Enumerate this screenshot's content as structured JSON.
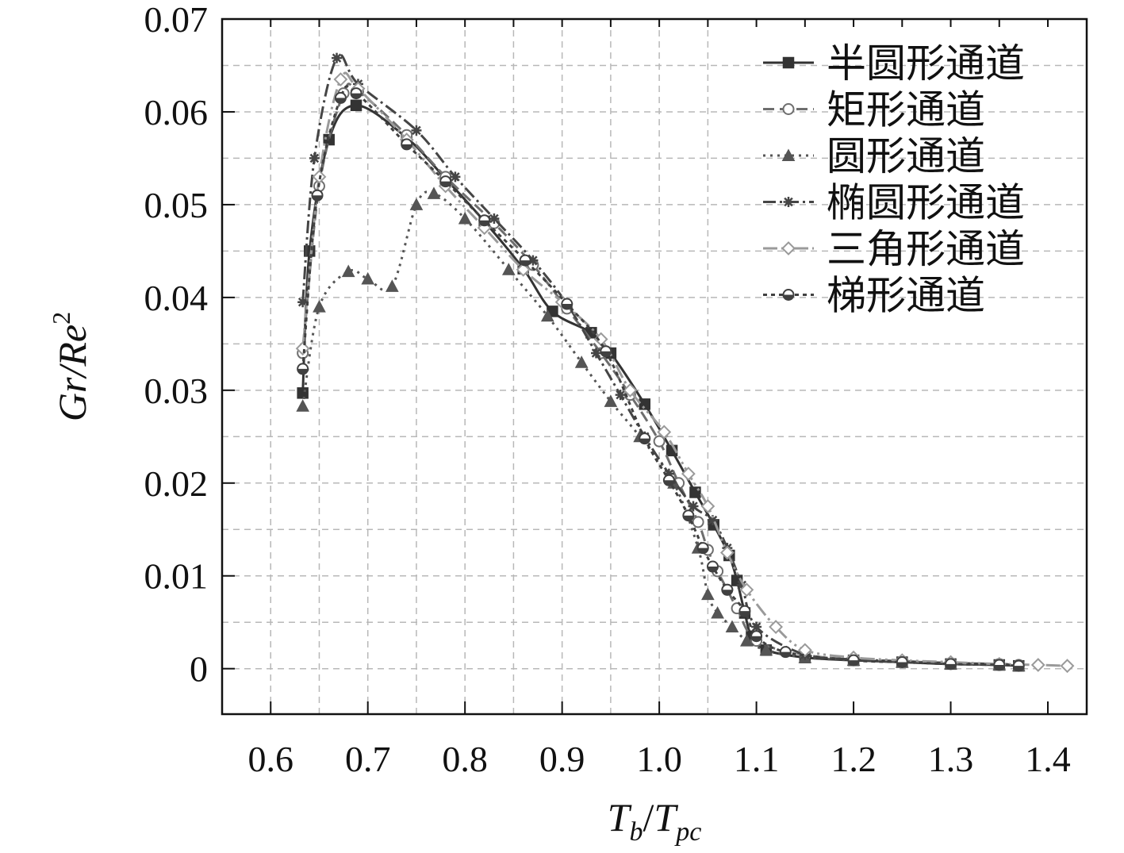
{
  "chart_data": {
    "type": "line",
    "xlabel": {
      "main": "T",
      "sub1": "b",
      "sep": "/",
      "main2": "T",
      "sub2": "pc"
    },
    "ylabel": {
      "text": "Gr/Re",
      "sup": "2"
    },
    "xlim": [
      0.55,
      1.44
    ],
    "ylim": [
      -0.0049,
      0.07
    ],
    "x_ticks": [
      "0.6",
      "0.7",
      "0.8",
      "0.9",
      "1.0",
      "1.1",
      "1.2",
      "1.3",
      "1.4"
    ],
    "y_ticks": [
      "0",
      "0.01",
      "0.02",
      "0.03",
      "0.04",
      "0.05",
      "0.06",
      "0.07"
    ],
    "grid": true,
    "legend_position": "top-right",
    "series": [
      {
        "name": "半圆形通道",
        "color": "#333333",
        "dash": "",
        "marker": "square-filled",
        "width": 3,
        "x": [
          0.633,
          0.64,
          0.66,
          0.688,
          0.74,
          0.78,
          0.82,
          0.86,
          0.89,
          0.93,
          0.95,
          0.985,
          1.013,
          1.037,
          1.056,
          1.072,
          1.08,
          1.088,
          1.095,
          1.11,
          1.15,
          1.2,
          1.25,
          1.3,
          1.35,
          1.37
        ],
        "y": [
          0.0297,
          0.045,
          0.057,
          0.0607,
          0.0572,
          0.0528,
          0.0482,
          0.0431,
          0.0385,
          0.0362,
          0.034,
          0.0285,
          0.0235,
          0.019,
          0.0155,
          0.0122,
          0.0095,
          0.006,
          0.0035,
          0.002,
          0.0012,
          0.0009,
          0.0007,
          0.0005,
          0.0004,
          0.0003
        ]
      },
      {
        "name": "矩形通道",
        "color": "#6e6e6e",
        "dash": "14,7",
        "marker": "circle-open",
        "width": 3,
        "x": [
          0.633,
          0.65,
          0.675,
          0.69,
          0.74,
          0.78,
          0.83,
          0.87,
          0.905,
          0.94,
          0.97,
          1.0,
          1.02,
          1.04,
          1.05,
          1.06,
          1.07,
          1.08,
          1.1,
          1.15,
          1.2,
          1.25,
          1.3,
          1.35,
          1.37
        ],
        "y": [
          0.034,
          0.052,
          0.062,
          0.0622,
          0.0575,
          0.053,
          0.048,
          0.0435,
          0.0388,
          0.034,
          0.0295,
          0.0245,
          0.02,
          0.0158,
          0.0128,
          0.0105,
          0.0085,
          0.0065,
          0.003,
          0.0015,
          0.001,
          0.0008,
          0.0006,
          0.0005,
          0.0004
        ]
      },
      {
        "name": "圆形通道",
        "color": "#555555",
        "dash": "3,6",
        "marker": "triangle-filled",
        "width": 3,
        "x": [
          0.633,
          0.65,
          0.68,
          0.7,
          0.725,
          0.75,
          0.768,
          0.8,
          0.845,
          0.885,
          0.92,
          0.95,
          0.98,
          1.015,
          1.04,
          1.05,
          1.06,
          1.075,
          1.09,
          1.11,
          1.15,
          1.2,
          1.25,
          1.3,
          1.35,
          1.37
        ],
        "y": [
          0.0283,
          0.039,
          0.0428,
          0.042,
          0.0412,
          0.05,
          0.0512,
          0.0485,
          0.043,
          0.038,
          0.033,
          0.0288,
          0.025,
          0.02,
          0.013,
          0.008,
          0.006,
          0.0045,
          0.003,
          0.002,
          0.0012,
          0.0009,
          0.0007,
          0.0005,
          0.0004,
          0.0003
        ]
      },
      {
        "name": "椭圆形通道",
        "color": "#454545",
        "dash": "16,5,3,5",
        "marker": "star",
        "width": 3,
        "x": [
          0.633,
          0.645,
          0.668,
          0.69,
          0.75,
          0.79,
          0.83,
          0.87,
          0.905,
          0.935,
          0.96,
          0.985,
          1.01,
          1.035,
          1.055,
          1.07,
          1.085,
          1.1,
          1.15,
          1.2,
          1.25,
          1.3,
          1.35,
          1.37
        ],
        "y": [
          0.0395,
          0.055,
          0.0658,
          0.063,
          0.058,
          0.053,
          0.0485,
          0.044,
          0.0393,
          0.034,
          0.0295,
          0.025,
          0.021,
          0.0175,
          0.016,
          0.013,
          0.009,
          0.0045,
          0.0015,
          0.001,
          0.0008,
          0.0006,
          0.0005,
          0.0004
        ]
      },
      {
        "name": "三角形通道",
        "color": "#9a9a9a",
        "dash": "18,5,3,5,3,5",
        "marker": "diamond-open",
        "width": 3,
        "x": [
          0.633,
          0.65,
          0.672,
          0.69,
          0.74,
          0.78,
          0.82,
          0.86,
          0.9,
          0.94,
          0.97,
          1.005,
          1.03,
          1.05,
          1.07,
          1.09,
          1.12,
          1.15,
          1.2,
          1.25,
          1.3,
          1.35,
          1.39,
          1.42
        ],
        "y": [
          0.0345,
          0.053,
          0.0635,
          0.0625,
          0.057,
          0.052,
          0.0475,
          0.043,
          0.0395,
          0.0355,
          0.03,
          0.0255,
          0.021,
          0.0175,
          0.0125,
          0.0085,
          0.0045,
          0.002,
          0.0012,
          0.0009,
          0.0007,
          0.0005,
          0.0004,
          0.0003
        ]
      },
      {
        "name": "梯形通道",
        "color": "#404040",
        "dash": "5,5",
        "marker": "circle-half",
        "width": 3,
        "x": [
          0.633,
          0.648,
          0.672,
          0.688,
          0.74,
          0.78,
          0.82,
          0.862,
          0.905,
          0.945,
          0.985,
          1.01,
          1.03,
          1.045,
          1.055,
          1.07,
          1.088,
          1.1,
          1.13,
          1.2,
          1.25,
          1.3,
          1.35,
          1.37
        ],
        "y": [
          0.0323,
          0.051,
          0.0615,
          0.062,
          0.0565,
          0.0525,
          0.0483,
          0.044,
          0.0393,
          0.0342,
          0.0248,
          0.0203,
          0.0165,
          0.013,
          0.011,
          0.0085,
          0.0062,
          0.0035,
          0.0018,
          0.0009,
          0.0007,
          0.0005,
          0.0004,
          0.0003
        ]
      }
    ]
  }
}
